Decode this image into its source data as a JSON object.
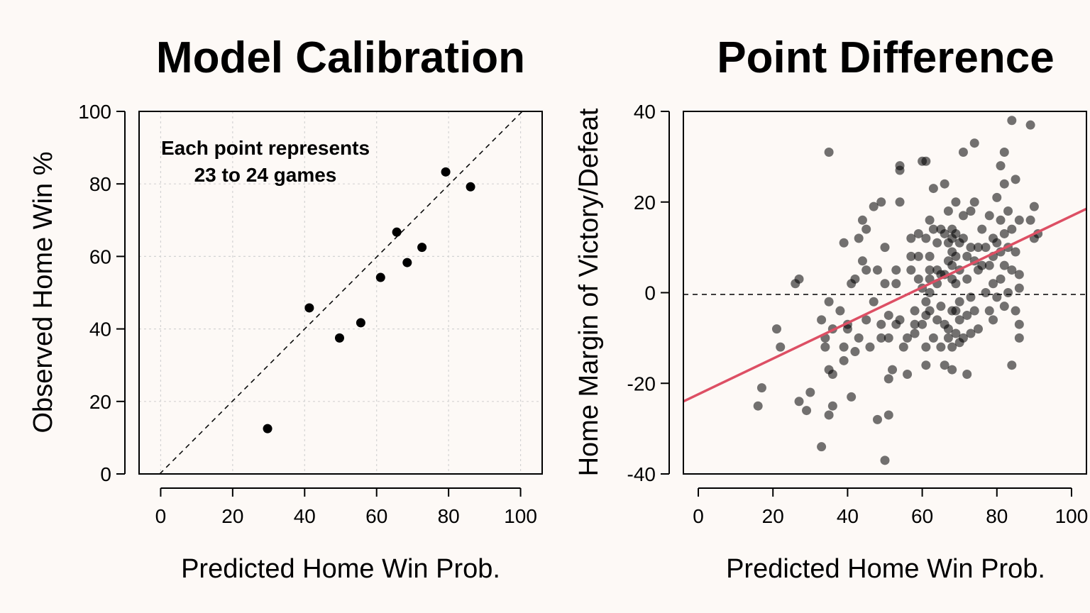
{
  "chart_data": [
    {
      "type": "scatter",
      "title": "Model Calibration",
      "xlabel": "Predicted Home Win Prob.",
      "ylabel": "Observed Home Win %",
      "xlim": [
        -6,
        106
      ],
      "ylim": [
        0,
        100
      ],
      "xticks": [
        "0",
        "20",
        "40",
        "60",
        "80",
        "100"
      ],
      "yticks": [
        "0",
        "20",
        "40",
        "60",
        "80",
        "100"
      ],
      "grid": true,
      "reference_line": "y = x (dashed)",
      "annotation": [
        "Each point represents",
        "23 to 24 games"
      ],
      "points": [
        {
          "x": 29.7,
          "y": 12.5
        },
        {
          "x": 41.3,
          "y": 45.8
        },
        {
          "x": 49.7,
          "y": 37.5
        },
        {
          "x": 55.6,
          "y": 41.7
        },
        {
          "x": 61.1,
          "y": 54.2
        },
        {
          "x": 65.6,
          "y": 66.7
        },
        {
          "x": 68.5,
          "y": 58.3
        },
        {
          "x": 72.6,
          "y": 62.5
        },
        {
          "x": 79.2,
          "y": 83.3
        },
        {
          "x": 86.1,
          "y": 79.2
        }
      ],
      "colors": {
        "points": "#000000"
      }
    },
    {
      "type": "scatter",
      "title": "Point Difference",
      "xlabel": "Predicted Home Win Prob.",
      "ylabel": "Home Margin of Victory/Defeat",
      "xlim": [
        -4,
        104
      ],
      "ylim": [
        -40,
        40
      ],
      "xticks": [
        "0",
        "20",
        "40",
        "60",
        "80",
        "100"
      ],
      "yticks": [
        "-40",
        "-20",
        "0",
        "20",
        "40"
      ],
      "reference_line": "y = 0 (dashed)",
      "fit_line": {
        "x": [
          -4,
          104
        ],
        "y": [
          -24.0,
          18.5
        ]
      },
      "points": [
        {
          "x": 35,
          "y": 31
        },
        {
          "x": 16,
          "y": -25
        },
        {
          "x": 17,
          "y": -21
        },
        {
          "x": 21,
          "y": -8
        },
        {
          "x": 22,
          "y": -12
        },
        {
          "x": 26,
          "y": 2
        },
        {
          "x": 27,
          "y": 3
        },
        {
          "x": 27,
          "y": -24
        },
        {
          "x": 29,
          "y": -26
        },
        {
          "x": 30,
          "y": -22
        },
        {
          "x": 33,
          "y": -34
        },
        {
          "x": 33,
          "y": -6
        },
        {
          "x": 34,
          "y": -10
        },
        {
          "x": 34,
          "y": -12
        },
        {
          "x": 35,
          "y": -17
        },
        {
          "x": 35,
          "y": -27
        },
        {
          "x": 36,
          "y": -25
        },
        {
          "x": 35,
          "y": -2
        },
        {
          "x": 36,
          "y": -8
        },
        {
          "x": 36,
          "y": -18
        },
        {
          "x": 38,
          "y": -4
        },
        {
          "x": 39,
          "y": -15
        },
        {
          "x": 39,
          "y": -12
        },
        {
          "x": 39,
          "y": 11
        },
        {
          "x": 40,
          "y": -8
        },
        {
          "x": 40,
          "y": -7
        },
        {
          "x": 41,
          "y": 2
        },
        {
          "x": 41,
          "y": -23
        },
        {
          "x": 42,
          "y": 3
        },
        {
          "x": 42,
          "y": -13
        },
        {
          "x": 43,
          "y": 12
        },
        {
          "x": 43,
          "y": -10
        },
        {
          "x": 44,
          "y": 16
        },
        {
          "x": 44,
          "y": 7
        },
        {
          "x": 45,
          "y": 14
        },
        {
          "x": 45,
          "y": 5
        },
        {
          "x": 45,
          "y": -6
        },
        {
          "x": 46,
          "y": -12
        },
        {
          "x": 47,
          "y": -2
        },
        {
          "x": 47,
          "y": 19
        },
        {
          "x": 48,
          "y": 5
        },
        {
          "x": 48,
          "y": -28
        },
        {
          "x": 49,
          "y": -10
        },
        {
          "x": 49,
          "y": -7
        },
        {
          "x": 49,
          "y": 20
        },
        {
          "x": 50,
          "y": 10
        },
        {
          "x": 50,
          "y": -37
        },
        {
          "x": 50,
          "y": 2
        },
        {
          "x": 51,
          "y": -5
        },
        {
          "x": 51,
          "y": -10
        },
        {
          "x": 51,
          "y": -27
        },
        {
          "x": 51,
          "y": -19
        },
        {
          "x": 52,
          "y": -17
        },
        {
          "x": 53,
          "y": 5
        },
        {
          "x": 53,
          "y": 2
        },
        {
          "x": 53,
          "y": -7
        },
        {
          "x": 54,
          "y": 27
        },
        {
          "x": 54,
          "y": 28
        },
        {
          "x": 54,
          "y": 20
        },
        {
          "x": 54,
          "y": -6
        },
        {
          "x": 55,
          "y": -12
        },
        {
          "x": 56,
          "y": -10
        },
        {
          "x": 56,
          "y": -18
        },
        {
          "x": 57,
          "y": 12
        },
        {
          "x": 57,
          "y": 8
        },
        {
          "x": 57,
          "y": 5
        },
        {
          "x": 58,
          "y": -7
        },
        {
          "x": 58,
          "y": -4
        },
        {
          "x": 58,
          "y": -9
        },
        {
          "x": 59,
          "y": 13
        },
        {
          "x": 59,
          "y": 8
        },
        {
          "x": 59,
          "y": 3
        },
        {
          "x": 60,
          "y": 29
        },
        {
          "x": 60,
          "y": 1
        },
        {
          "x": 60,
          "y": -7
        },
        {
          "x": 61,
          "y": 29
        },
        {
          "x": 61,
          "y": 12
        },
        {
          "x": 61,
          "y": -2
        },
        {
          "x": 61,
          "y": -5
        },
        {
          "x": 61,
          "y": -12
        },
        {
          "x": 61,
          "y": -16
        },
        {
          "x": 62,
          "y": 16
        },
        {
          "x": 62,
          "y": 8
        },
        {
          "x": 62,
          "y": 5
        },
        {
          "x": 62,
          "y": 3
        },
        {
          "x": 62,
          "y": 0
        },
        {
          "x": 62,
          "y": -4
        },
        {
          "x": 63,
          "y": -10
        },
        {
          "x": 63,
          "y": 23
        },
        {
          "x": 63,
          "y": 14
        },
        {
          "x": 64,
          "y": 11
        },
        {
          "x": 64,
          "y": 5
        },
        {
          "x": 64,
          "y": 2
        },
        {
          "x": 64,
          "y": -6
        },
        {
          "x": 65,
          "y": 14
        },
        {
          "x": 65,
          "y": 4
        },
        {
          "x": 65,
          "y": -3
        },
        {
          "x": 65,
          "y": -12
        },
        {
          "x": 66,
          "y": 24
        },
        {
          "x": 66,
          "y": 13
        },
        {
          "x": 66,
          "y": 4
        },
        {
          "x": 66,
          "y": -7
        },
        {
          "x": 66,
          "y": -16
        },
        {
          "x": 67,
          "y": 18
        },
        {
          "x": 67,
          "y": 11
        },
        {
          "x": 67,
          "y": 7
        },
        {
          "x": 67,
          "y": -8
        },
        {
          "x": 67,
          "y": -10
        },
        {
          "x": 68,
          "y": 14
        },
        {
          "x": 68,
          "y": 12
        },
        {
          "x": 68,
          "y": 9
        },
        {
          "x": 68,
          "y": 6
        },
        {
          "x": 68,
          "y": 3
        },
        {
          "x": 68,
          "y": -4
        },
        {
          "x": 68,
          "y": -12
        },
        {
          "x": 68,
          "y": -17
        },
        {
          "x": 69,
          "y": 20
        },
        {
          "x": 69,
          "y": 13
        },
        {
          "x": 69,
          "y": 8
        },
        {
          "x": 69,
          "y": 2
        },
        {
          "x": 69,
          "y": -4
        },
        {
          "x": 69,
          "y": -9
        },
        {
          "x": 70,
          "y": 11
        },
        {
          "x": 70,
          "y": 5
        },
        {
          "x": 70,
          "y": -2
        },
        {
          "x": 70,
          "y": -6
        },
        {
          "x": 70,
          "y": -11
        },
        {
          "x": 71,
          "y": 17
        },
        {
          "x": 71,
          "y": 12
        },
        {
          "x": 71,
          "y": -10
        },
        {
          "x": 71,
          "y": 31
        },
        {
          "x": 72,
          "y": 8
        },
        {
          "x": 72,
          "y": 3
        },
        {
          "x": 72,
          "y": -5
        },
        {
          "x": 72,
          "y": -18
        },
        {
          "x": 73,
          "y": 18
        },
        {
          "x": 73,
          "y": 10
        },
        {
          "x": 73,
          "y": -1
        },
        {
          "x": 73,
          "y": -9
        },
        {
          "x": 74,
          "y": 33
        },
        {
          "x": 74,
          "y": 20
        },
        {
          "x": 74,
          "y": 7
        },
        {
          "x": 74,
          "y": -4
        },
        {
          "x": 75,
          "y": 10
        },
        {
          "x": 75,
          "y": 5
        },
        {
          "x": 75,
          "y": -8
        },
        {
          "x": 76,
          "y": 14
        },
        {
          "x": 76,
          "y": 6
        },
        {
          "x": 77,
          "y": 10
        },
        {
          "x": 77,
          "y": 0
        },
        {
          "x": 78,
          "y": 17
        },
        {
          "x": 78,
          "y": 6
        },
        {
          "x": 78,
          "y": -4
        },
        {
          "x": 79,
          "y": 12
        },
        {
          "x": 79,
          "y": 8
        },
        {
          "x": 79,
          "y": 2
        },
        {
          "x": 79,
          "y": -6
        },
        {
          "x": 80,
          "y": 21
        },
        {
          "x": 80,
          "y": 11
        },
        {
          "x": 80,
          "y": -1
        },
        {
          "x": 81,
          "y": 28
        },
        {
          "x": 81,
          "y": 16
        },
        {
          "x": 81,
          "y": 9
        },
        {
          "x": 81,
          "y": 3
        },
        {
          "x": 82,
          "y": 31
        },
        {
          "x": 82,
          "y": 24
        },
        {
          "x": 82,
          "y": 13
        },
        {
          "x": 82,
          "y": 6
        },
        {
          "x": 82,
          "y": -3
        },
        {
          "x": 83,
          "y": 18
        },
        {
          "x": 83,
          "y": 10
        },
        {
          "x": 83,
          "y": 0
        },
        {
          "x": 84,
          "y": 38
        },
        {
          "x": 84,
          "y": 14
        },
        {
          "x": 84,
          "y": 5
        },
        {
          "x": 84,
          "y": -16
        },
        {
          "x": 85,
          "y": 25
        },
        {
          "x": 85,
          "y": 9
        },
        {
          "x": 85,
          "y": -4
        },
        {
          "x": 86,
          "y": 16
        },
        {
          "x": 86,
          "y": 4
        },
        {
          "x": 86,
          "y": -7
        },
        {
          "x": 86,
          "y": -10
        },
        {
          "x": 86,
          "y": 1
        },
        {
          "x": 89,
          "y": 37
        },
        {
          "x": 89,
          "y": 16
        },
        {
          "x": 90,
          "y": 19
        },
        {
          "x": 90,
          "y": 12
        },
        {
          "x": 91,
          "y": 13
        }
      ],
      "colors": {
        "points": "#000000",
        "fit_line": "#dd4f64"
      }
    }
  ]
}
